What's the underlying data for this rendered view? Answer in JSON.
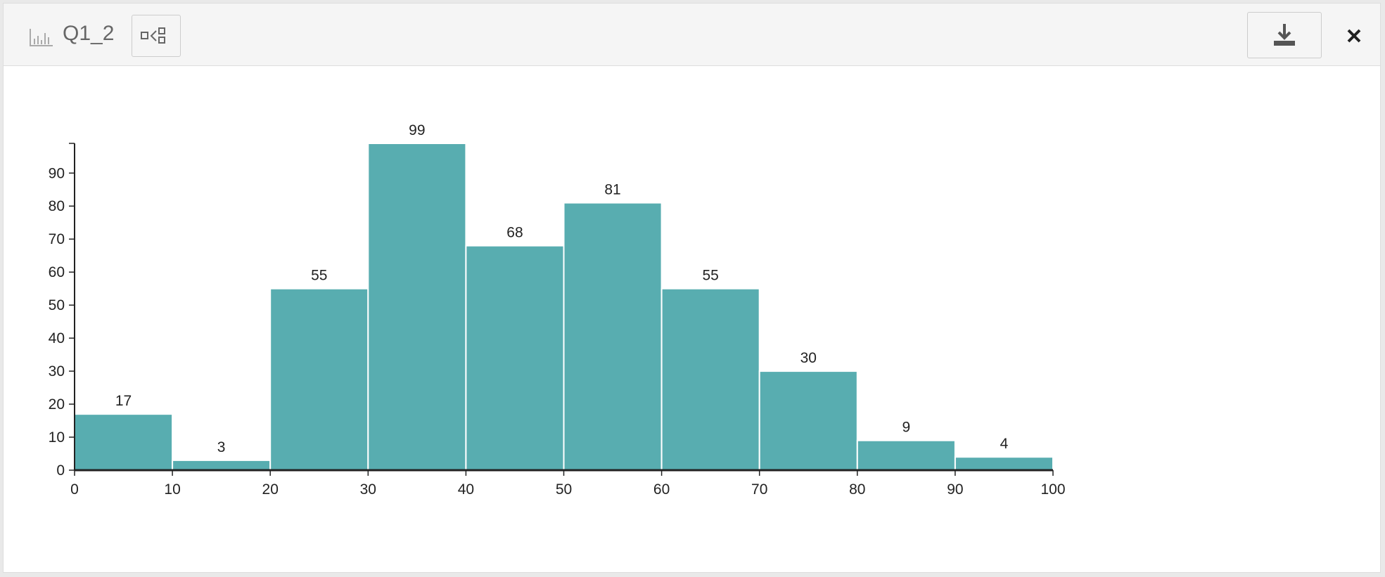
{
  "header": {
    "title": "Q1_2"
  },
  "chart_data": {
    "type": "histogram",
    "bins": [
      0,
      10,
      20,
      30,
      40,
      50,
      60,
      70,
      80,
      90,
      100
    ],
    "values": [
      17,
      3,
      55,
      99,
      68,
      81,
      55,
      30,
      9,
      4
    ],
    "color": "#58adb0",
    "xlim": [
      0,
      100
    ],
    "xticks": [
      0,
      10,
      20,
      30,
      40,
      50,
      60,
      70,
      80,
      90,
      100
    ],
    "ylim": [
      0,
      99
    ],
    "yticks": [
      0,
      10,
      20,
      30,
      40,
      50,
      60,
      70,
      80,
      90
    ],
    "grid": false
  }
}
